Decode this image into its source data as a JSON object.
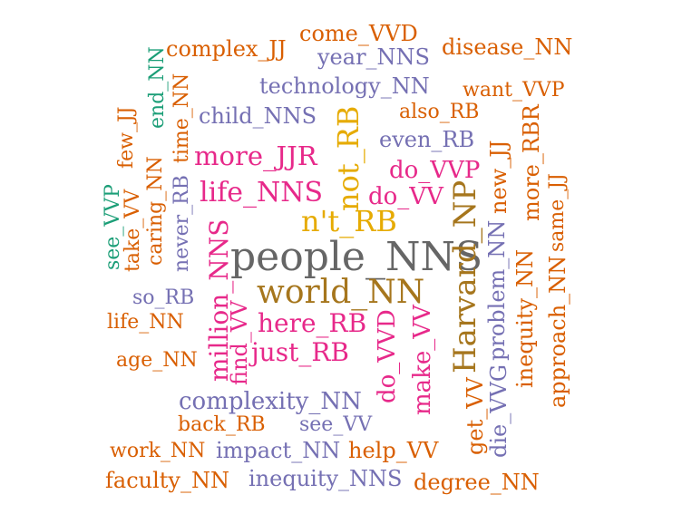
{
  "colors": {
    "orange": "#d95f02",
    "purple": "#7570b3",
    "magenta": "#e7298a",
    "gold": "#e6ab02",
    "olive": "#a6761d",
    "teal": "#1b9e77",
    "gray": "#666666"
  },
  "words": {
    "people_NNS": "people_NNS",
    "world_NN": "world_NN",
    "Harvard_NP": "Harvard_NP",
    "nt_RB": "n't_RB",
    "not_RB": "not_RB",
    "life_NNS": "life_NNS",
    "more_JJR": "more_JJR",
    "do_VVP": "do_VVP",
    "do_VV": "do_VV",
    "here_RB": "here_RB",
    "just_RB": "just_RB",
    "complexity_NN": "complexity_NN",
    "technology_NN": "technology_NN",
    "child_NNS": "child_NNS",
    "even_RB": "even_RB",
    "also_RB": "also_RB",
    "want_VVP": "want_VVP",
    "disease_NN": "disease_NN",
    "come_VVD": "come_VVD",
    "year_NNS": "year_NNS",
    "complex_JJ": "complex_JJ",
    "so_RB": "so_RB",
    "life_NN": "life_NN",
    "age_NN": "age_NN",
    "back_RB": "back_RB",
    "see_VV": "see_VV",
    "work_NN": "work_NN",
    "impact_NN": "impact_NN",
    "help_VV": "help_VV",
    "faculty_NN": "faculty_NN",
    "inequity_NNS": "inequity_NNS",
    "degree_NN": "degree_NN",
    "million_NNS": "million_NNS",
    "find_VV": "find_VV",
    "do_VVD": "do_VVD",
    "make_VV": "make_VV",
    "get_VV": "get_VV",
    "die_VVG": "die_VVG",
    "problem_NN": "problem_NN",
    "new_JJ": "new_JJ",
    "inequity_NN": "inequity_NN",
    "more_RBR": "more_RBR",
    "approach_NN": "approach_NN",
    "same_JJ": "same_JJ",
    "end_NN": "end_NN",
    "time_NN": "time_NN",
    "few_JJ": "few_JJ",
    "caring_NN": "caring_NN",
    "never_RB": "never_RB",
    "take_VV": "take_VV",
    "see_VVP": "see_VVP"
  }
}
